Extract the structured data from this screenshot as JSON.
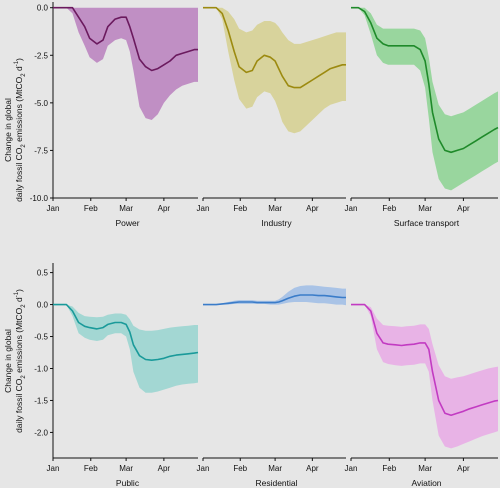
{
  "chart_data": {
    "type": "area",
    "x_tick_labels": [
      "Jan",
      "Feb",
      "Mar",
      "Apr"
    ],
    "rows": [
      {
        "ylabel_line1": "Change in global",
        "ylabel_line2_pre": "daily fossil CO",
        "ylabel_sub": "2",
        "ylabel_line2_mid": " emissions (MtCO",
        "ylabel_line2_post": " d",
        "ylabel_sup": "-1",
        "ylabel_close": ")",
        "ylim": [
          -10.0,
          0.3
        ],
        "yticks": [
          0.0,
          -2.5,
          -5.0,
          -7.5,
          -10.0
        ],
        "ytick_labels": [
          "0.0",
          "-2.5",
          "-5.0",
          "-7.5",
          "-10.0"
        ]
      },
      {
        "ylabel_line1": "Change in global",
        "ylabel_line2_pre": "daily fossil CO",
        "ylabel_sub": "2",
        "ylabel_line2_mid": " emissions (MtCO",
        "ylabel_line2_post": " d",
        "ylabel_sup": "-1",
        "ylabel_close": ")",
        "ylim": [
          -2.4,
          0.65
        ],
        "yticks": [
          0.5,
          0.0,
          -0.5,
          -1.0,
          -1.5,
          -2.0
        ],
        "ytick_labels": [
          "0.5",
          "0.0",
          "-0.5",
          "-1.0",
          "-1.5",
          "-2.0"
        ]
      }
    ],
    "panels": [
      {
        "row": 0,
        "col": 0,
        "name": "Power",
        "color": "#6b1a5e",
        "fill": "#c08fc4",
        "x": [
          1,
          7,
          12,
          17,
          22,
          27,
          31,
          37,
          42,
          46,
          52,
          57,
          61,
          64,
          67,
          72,
          77,
          82,
          87,
          92,
          97,
          102,
          107,
          112,
          117,
          120
        ],
        "mean": [
          0,
          0,
          0,
          0,
          -0.5,
          -1.0,
          -1.6,
          -1.9,
          -1.7,
          -1.0,
          -0.6,
          -0.5,
          -0.5,
          -1.0,
          -1.6,
          -2.7,
          -3.1,
          -3.3,
          -3.2,
          -3.0,
          -2.8,
          -2.5,
          -2.4,
          -2.3,
          -2.2,
          -2.2
        ],
        "upper": [
          0,
          0,
          0,
          0,
          0,
          0,
          0,
          0,
          0,
          0,
          0,
          0,
          0,
          0,
          0,
          0,
          0,
          0,
          0,
          0,
          0,
          0,
          0,
          0,
          0,
          0
        ],
        "lower": [
          0,
          0,
          0,
          -0.3,
          -1.3,
          -2.0,
          -2.6,
          -2.9,
          -2.7,
          -2.0,
          -1.7,
          -1.6,
          -1.7,
          -2.3,
          -3.3,
          -5.2,
          -5.8,
          -5.9,
          -5.6,
          -5.0,
          -4.6,
          -4.3,
          -4.1,
          -4.0,
          -3.9,
          -3.9
        ]
      },
      {
        "row": 0,
        "col": 1,
        "name": "Industry",
        "color": "#9c8a10",
        "fill": "#d8d39c",
        "x": [
          1,
          7,
          12,
          17,
          22,
          27,
          31,
          37,
          42,
          46,
          52,
          57,
          61,
          64,
          67,
          72,
          77,
          82,
          87,
          92,
          97,
          102,
          107,
          112,
          117,
          120
        ],
        "mean": [
          0,
          0,
          0,
          -0.3,
          -1.2,
          -2.3,
          -3.1,
          -3.4,
          -3.3,
          -2.8,
          -2.5,
          -2.6,
          -2.8,
          -3.2,
          -3.6,
          -4.1,
          -4.2,
          -4.2,
          -4.0,
          -3.8,
          -3.6,
          -3.4,
          -3.2,
          -3.1,
          -3.0,
          -3.0
        ],
        "upper": [
          0,
          0,
          0,
          0,
          -0.2,
          -0.6,
          -1.1,
          -1.3,
          -1.2,
          -0.9,
          -0.7,
          -0.7,
          -0.8,
          -1.0,
          -1.3,
          -1.7,
          -1.9,
          -1.9,
          -1.8,
          -1.7,
          -1.6,
          -1.5,
          -1.4,
          -1.3,
          -1.3,
          -1.3
        ],
        "lower": [
          0,
          0,
          0,
          -0.6,
          -2.3,
          -3.8,
          -4.8,
          -5.3,
          -5.2,
          -4.7,
          -4.4,
          -4.5,
          -4.9,
          -5.4,
          -6.0,
          -6.5,
          -6.6,
          -6.5,
          -6.2,
          -5.9,
          -5.6,
          -5.3,
          -5.1,
          -5.0,
          -4.9,
          -4.9
        ]
      },
      {
        "row": 0,
        "col": 2,
        "name": "Surface transport",
        "color": "#1f8a2a",
        "fill": "#99d69e",
        "x": [
          1,
          7,
          12,
          17,
          22,
          27,
          31,
          37,
          42,
          46,
          52,
          57,
          61,
          64,
          67,
          72,
          77,
          82,
          87,
          92,
          97,
          102,
          107,
          112,
          117,
          120
        ],
        "mean": [
          0,
          0,
          -0.2,
          -0.8,
          -1.6,
          -1.9,
          -2.0,
          -2.0,
          -2.0,
          -2.0,
          -2.0,
          -2.2,
          -2.8,
          -4.0,
          -5.5,
          -6.9,
          -7.5,
          -7.6,
          -7.5,
          -7.4,
          -7.2,
          -7.0,
          -6.8,
          -6.6,
          -6.4,
          -6.3
        ],
        "upper": [
          0,
          0,
          0,
          -0.3,
          -0.9,
          -1.1,
          -1.1,
          -1.1,
          -1.1,
          -1.1,
          -1.1,
          -1.2,
          -1.6,
          -2.6,
          -3.9,
          -5.1,
          -5.6,
          -5.7,
          -5.6,
          -5.5,
          -5.3,
          -5.1,
          -4.9,
          -4.7,
          -4.5,
          -4.4
        ],
        "lower": [
          0,
          0,
          -0.4,
          -1.4,
          -2.5,
          -2.9,
          -3.0,
          -3.0,
          -3.0,
          -3.0,
          -3.0,
          -3.3,
          -4.2,
          -5.8,
          -7.6,
          -9.0,
          -9.5,
          -9.6,
          -9.4,
          -9.2,
          -9.0,
          -8.8,
          -8.6,
          -8.4,
          -8.2,
          -8.1
        ]
      },
      {
        "row": 1,
        "col": 0,
        "name": "Public",
        "color": "#1a9a9a",
        "fill": "#a3d7d3",
        "x": [
          1,
          7,
          12,
          17,
          22,
          27,
          31,
          37,
          42,
          46,
          52,
          57,
          61,
          64,
          67,
          72,
          77,
          82,
          87,
          92,
          97,
          102,
          107,
          112,
          117,
          120
        ],
        "mean": [
          0,
          0,
          0,
          -0.1,
          -0.28,
          -0.34,
          -0.36,
          -0.38,
          -0.36,
          -0.31,
          -0.28,
          -0.28,
          -0.31,
          -0.43,
          -0.63,
          -0.8,
          -0.86,
          -0.87,
          -0.86,
          -0.84,
          -0.81,
          -0.79,
          -0.78,
          -0.77,
          -0.76,
          -0.75
        ],
        "upper": [
          0,
          0,
          0,
          -0.03,
          -0.13,
          -0.18,
          -0.19,
          -0.2,
          -0.19,
          -0.16,
          -0.14,
          -0.14,
          -0.16,
          -0.23,
          -0.33,
          -0.39,
          -0.41,
          -0.41,
          -0.4,
          -0.38,
          -0.36,
          -0.35,
          -0.34,
          -0.33,
          -0.32,
          -0.32
        ],
        "lower": [
          0,
          0,
          0,
          -0.18,
          -0.45,
          -0.52,
          -0.55,
          -0.57,
          -0.55,
          -0.48,
          -0.45,
          -0.45,
          -0.5,
          -0.7,
          -1.05,
          -1.3,
          -1.38,
          -1.38,
          -1.36,
          -1.33,
          -1.3,
          -1.27,
          -1.25,
          -1.24,
          -1.23,
          -1.22
        ]
      },
      {
        "row": 1,
        "col": 1,
        "name": "Residential",
        "color": "#3a7cc9",
        "fill": "#a9c3e6",
        "x": [
          1,
          7,
          12,
          17,
          22,
          27,
          31,
          37,
          42,
          46,
          52,
          57,
          61,
          64,
          67,
          72,
          77,
          82,
          87,
          92,
          97,
          102,
          107,
          112,
          117,
          120
        ],
        "mean": [
          0,
          0,
          0,
          0.01,
          0.02,
          0.03,
          0.04,
          0.04,
          0.04,
          0.03,
          0.03,
          0.03,
          0.03,
          0.04,
          0.06,
          0.1,
          0.13,
          0.15,
          0.15,
          0.15,
          0.14,
          0.14,
          0.13,
          0.12,
          0.11,
          0.11
        ],
        "upper": [
          0,
          0,
          0,
          0.02,
          0.04,
          0.06,
          0.07,
          0.07,
          0.07,
          0.06,
          0.06,
          0.06,
          0.06,
          0.08,
          0.12,
          0.2,
          0.26,
          0.29,
          0.3,
          0.3,
          0.29,
          0.28,
          0.27,
          0.26,
          0.25,
          0.25
        ],
        "lower": [
          0,
          0,
          0,
          0,
          0,
          0.01,
          0.01,
          0.01,
          0.01,
          0.01,
          0.01,
          0.0,
          0.0,
          0.0,
          0.01,
          0.03,
          0.04,
          0.04,
          0.04,
          0.03,
          0.02,
          0.02,
          0.01,
          0.0,
          0.0,
          -0.01
        ]
      },
      {
        "row": 1,
        "col": 2,
        "name": "Aviation",
        "color": "#c23bc2",
        "fill": "#e8b3e6",
        "x": [
          1,
          7,
          12,
          17,
          22,
          27,
          31,
          37,
          42,
          46,
          52,
          57,
          61,
          64,
          67,
          72,
          77,
          82,
          87,
          92,
          97,
          102,
          107,
          112,
          117,
          120
        ],
        "mean": [
          0,
          0,
          0,
          -0.1,
          -0.45,
          -0.6,
          -0.62,
          -0.63,
          -0.64,
          -0.63,
          -0.62,
          -0.6,
          -0.6,
          -0.7,
          -1.05,
          -1.5,
          -1.7,
          -1.73,
          -1.7,
          -1.67,
          -1.63,
          -1.6,
          -1.57,
          -1.54,
          -1.51,
          -1.5
        ],
        "upper": [
          0,
          0,
          0,
          -0.04,
          -0.22,
          -0.32,
          -0.33,
          -0.34,
          -0.35,
          -0.34,
          -0.33,
          -0.31,
          -0.31,
          -0.38,
          -0.62,
          -0.95,
          -1.12,
          -1.16,
          -1.14,
          -1.12,
          -1.09,
          -1.06,
          -1.03,
          -1.0,
          -0.98,
          -0.97
        ],
        "lower": [
          0,
          0,
          0,
          -0.18,
          -0.7,
          -0.9,
          -0.93,
          -0.95,
          -0.96,
          -0.95,
          -0.94,
          -0.92,
          -0.92,
          -1.05,
          -1.5,
          -2.05,
          -2.22,
          -2.25,
          -2.22,
          -2.18,
          -2.14,
          -2.1,
          -2.06,
          -2.03,
          -2.0,
          -1.98
        ]
      }
    ]
  }
}
